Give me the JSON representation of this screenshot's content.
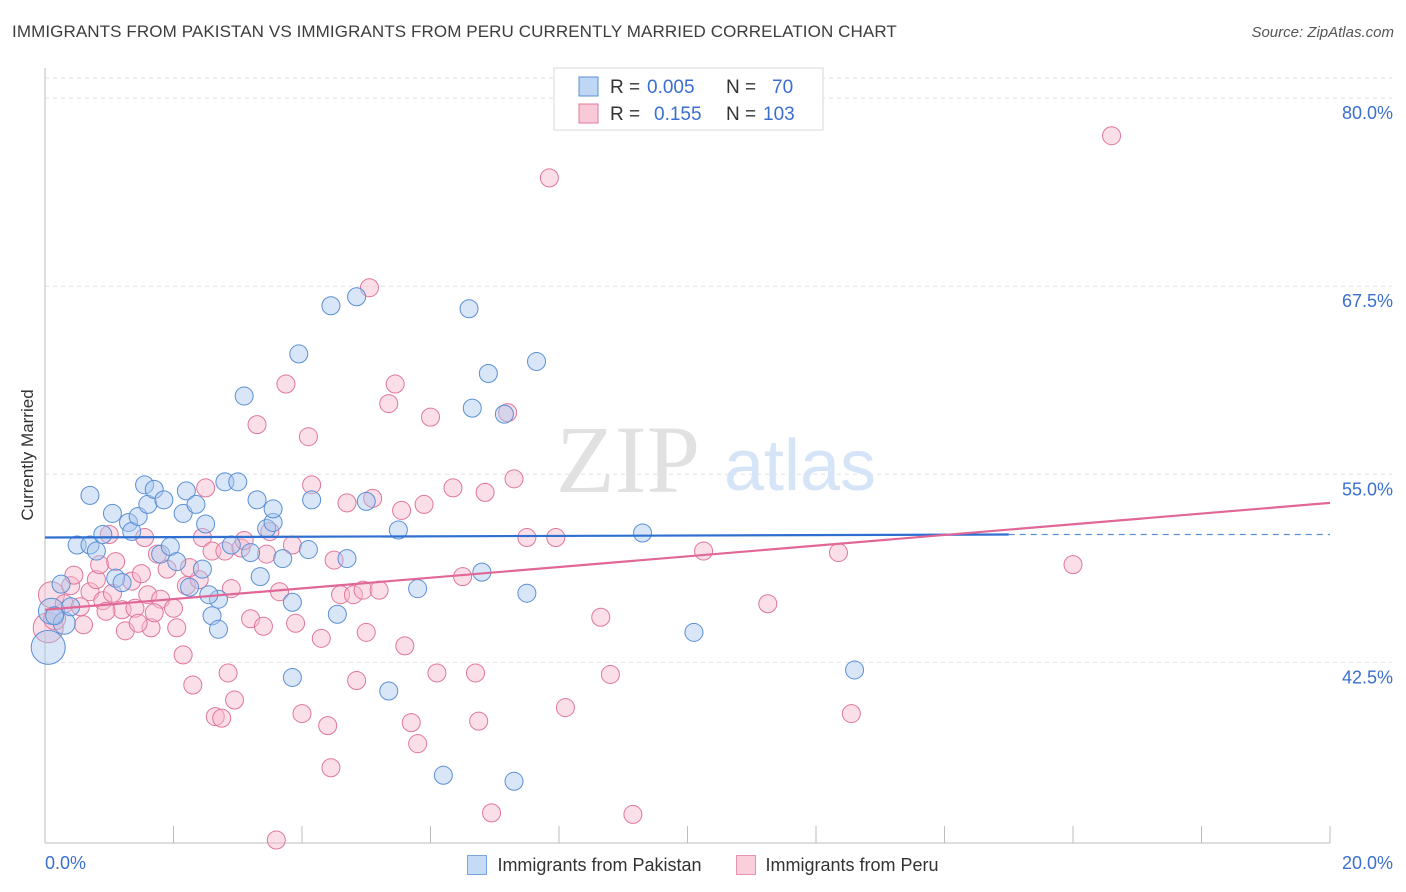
{
  "chart_data": {
    "type": "scatter",
    "title": "IMMIGRANTS FROM PAKISTAN VS IMMIGRANTS FROM PERU CURRENTLY MARRIED CORRELATION CHART",
    "source": "Source: ZipAtlas.com",
    "xlabel": "",
    "ylabel": "Currently Married",
    "xlim": [
      0,
      20
    ],
    "ylim": [
      30.5,
      82
    ],
    "x_tick_labels": [
      "0.0%",
      "20.0%"
    ],
    "y_ticks": [
      42.5,
      55.0,
      67.5,
      80.0
    ],
    "y_tick_labels": [
      "42.5%",
      "55.0%",
      "67.5%",
      "80.0%"
    ],
    "watermark": {
      "zip": "ZIP",
      "atlas": "atlas"
    },
    "legend_stats": [
      {
        "r_label": "R =",
        "r_value": "0.005",
        "n_label": "N =",
        "n_value": "70"
      },
      {
        "r_label": "R =",
        "r_value": "0.155",
        "n_label": "N =",
        "n_value": "103"
      }
    ],
    "colors": {
      "pakistan_fill": "#a9c8f0",
      "pakistan_stroke": "#5b8fd6",
      "pakistan_line": "#2f6fd0",
      "peru_fill": "#f6b8cb",
      "peru_stroke": "#e0779a",
      "peru_line": "#e06796",
      "tick_label": "#3a6fd0",
      "grid": "#e3e3e3"
    },
    "series": [
      {
        "name": "Immigrants from Pakistan",
        "trend": {
          "x_start": 0,
          "y_start": 50.8,
          "x_end": 15.0,
          "y_end": 51.0,
          "dashed_to_x": 20,
          "dashed_y": 51.0
        },
        "points": [
          [
            0.05,
            43.5
          ],
          [
            0.1,
            45.9
          ],
          [
            0.3,
            45.1
          ],
          [
            0.25,
            47.7
          ],
          [
            0.5,
            50.3
          ],
          [
            0.7,
            50.3
          ],
          [
            0.8,
            49.9
          ],
          [
            0.7,
            53.6
          ],
          [
            0.9,
            51.0
          ],
          [
            1.05,
            52.4
          ],
          [
            1.1,
            48.1
          ],
          [
            1.3,
            51.8
          ],
          [
            1.35,
            51.2
          ],
          [
            1.45,
            52.2
          ],
          [
            1.55,
            54.3
          ],
          [
            1.6,
            53.0
          ],
          [
            1.7,
            54.0
          ],
          [
            1.8,
            49.7
          ],
          [
            1.85,
            53.3
          ],
          [
            1.95,
            50.2
          ],
          [
            2.05,
            49.2
          ],
          [
            2.15,
            52.4
          ],
          [
            2.2,
            53.9
          ],
          [
            2.25,
            47.5
          ],
          [
            2.35,
            53.0
          ],
          [
            2.45,
            48.7
          ],
          [
            2.5,
            51.7
          ],
          [
            2.6,
            45.6
          ],
          [
            2.7,
            46.7
          ],
          [
            2.8,
            54.5
          ],
          [
            2.9,
            50.3
          ],
          [
            3.0,
            54.5
          ],
          [
            3.1,
            60.2
          ],
          [
            3.2,
            49.8
          ],
          [
            3.3,
            53.3
          ],
          [
            3.35,
            48.2
          ],
          [
            3.45,
            51.4
          ],
          [
            3.55,
            51.8
          ],
          [
            3.55,
            52.7
          ],
          [
            3.7,
            49.4
          ],
          [
            3.85,
            41.5
          ],
          [
            3.95,
            63.0
          ],
          [
            4.1,
            50.0
          ],
          [
            4.15,
            53.3
          ],
          [
            4.45,
            66.2
          ],
          [
            4.55,
            45.7
          ],
          [
            4.85,
            66.8
          ],
          [
            4.7,
            49.4
          ],
          [
            5.0,
            53.2
          ],
          [
            5.35,
            40.6
          ],
          [
            5.5,
            51.3
          ],
          [
            5.8,
            47.4
          ],
          [
            6.2,
            35.0
          ],
          [
            6.6,
            66.0
          ],
          [
            6.65,
            59.4
          ],
          [
            6.8,
            48.5
          ],
          [
            6.9,
            61.7
          ],
          [
            7.15,
            59.0
          ],
          [
            7.3,
            34.6
          ],
          [
            7.5,
            47.1
          ],
          [
            7.65,
            62.5
          ],
          [
            9.3,
            51.1
          ],
          [
            10.1,
            44.5
          ],
          [
            12.6,
            42.0
          ],
          [
            2.7,
            44.7
          ],
          [
            3.85,
            46.5
          ],
          [
            0.4,
            46.2
          ],
          [
            1.2,
            47.8
          ],
          [
            2.55,
            47.0
          ],
          [
            0.15,
            45.6
          ]
        ],
        "sizes": [
          34,
          26,
          22,
          18,
          18,
          18,
          18,
          18,
          18,
          18,
          18,
          18,
          18,
          18,
          18,
          18,
          18,
          18,
          18,
          18,
          18,
          18,
          18,
          18,
          18,
          18,
          18,
          18,
          18,
          18,
          18,
          18,
          18,
          18,
          18,
          18,
          18,
          18,
          18,
          18,
          18,
          18,
          18,
          18,
          18,
          18,
          18,
          18,
          18,
          18,
          18,
          18,
          18,
          18,
          18,
          18,
          18,
          18,
          18,
          18,
          18,
          18,
          18,
          18,
          18,
          18,
          18,
          18,
          18,
          18
        ]
      },
      {
        "name": "Immigrants from Peru",
        "trend": {
          "x_start": 0,
          "y_start": 46.0,
          "x_end": 20,
          "y_end": 53.1
        },
        "points": [
          [
            0.05,
            44.8
          ],
          [
            0.1,
            47.0
          ],
          [
            0.15,
            45.4
          ],
          [
            0.3,
            46.4
          ],
          [
            0.4,
            47.6
          ],
          [
            0.45,
            48.3
          ],
          [
            0.55,
            46.2
          ],
          [
            0.6,
            45.0
          ],
          [
            0.7,
            47.2
          ],
          [
            0.8,
            48.0
          ],
          [
            0.85,
            49.0
          ],
          [
            0.9,
            46.6
          ],
          [
            1.0,
            51.0
          ],
          [
            1.05,
            47.1
          ],
          [
            1.1,
            49.2
          ],
          [
            1.2,
            46.0
          ],
          [
            1.25,
            44.6
          ],
          [
            1.35,
            47.9
          ],
          [
            1.4,
            46.1
          ],
          [
            1.5,
            48.4
          ],
          [
            1.55,
            50.8
          ],
          [
            1.6,
            47.0
          ],
          [
            1.65,
            44.8
          ],
          [
            1.75,
            49.7
          ],
          [
            1.8,
            46.7
          ],
          [
            1.9,
            48.7
          ],
          [
            2.0,
            46.1
          ],
          [
            2.05,
            44.8
          ],
          [
            2.15,
            43.0
          ],
          [
            2.2,
            47.6
          ],
          [
            2.3,
            41.0
          ],
          [
            2.4,
            48.0
          ],
          [
            2.45,
            50.8
          ],
          [
            2.5,
            54.1
          ],
          [
            2.6,
            49.9
          ],
          [
            2.65,
            38.9
          ],
          [
            2.75,
            38.8
          ],
          [
            2.8,
            49.9
          ],
          [
            2.85,
            41.8
          ],
          [
            2.95,
            40.0
          ],
          [
            3.05,
            50.1
          ],
          [
            3.1,
            50.6
          ],
          [
            3.2,
            45.4
          ],
          [
            3.3,
            58.3
          ],
          [
            3.4,
            44.9
          ],
          [
            3.5,
            51.2
          ],
          [
            3.6,
            30.7
          ],
          [
            3.65,
            47.2
          ],
          [
            3.75,
            61.0
          ],
          [
            3.85,
            50.3
          ],
          [
            3.9,
            45.1
          ],
          [
            4.0,
            39.1
          ],
          [
            4.1,
            57.5
          ],
          [
            4.15,
            54.3
          ],
          [
            4.3,
            44.1
          ],
          [
            4.4,
            38.3
          ],
          [
            4.45,
            35.5
          ],
          [
            4.5,
            49.3
          ],
          [
            4.6,
            47.0
          ],
          [
            4.7,
            53.1
          ],
          [
            4.8,
            47.0
          ],
          [
            4.85,
            41.3
          ],
          [
            4.95,
            47.3
          ],
          [
            5.0,
            44.5
          ],
          [
            5.05,
            67.4
          ],
          [
            5.1,
            53.4
          ],
          [
            5.2,
            47.3
          ],
          [
            5.35,
            59.7
          ],
          [
            5.45,
            61.0
          ],
          [
            5.6,
            43.6
          ],
          [
            5.7,
            38.5
          ],
          [
            5.8,
            37.1
          ],
          [
            5.9,
            53.0
          ],
          [
            6.0,
            58.8
          ],
          [
            6.1,
            41.8
          ],
          [
            6.35,
            54.1
          ],
          [
            6.5,
            48.2
          ],
          [
            6.7,
            41.8
          ],
          [
            6.75,
            38.6
          ],
          [
            6.85,
            53.8
          ],
          [
            6.95,
            32.5
          ],
          [
            7.2,
            59.1
          ],
          [
            7.3,
            54.7
          ],
          [
            7.5,
            50.8
          ],
          [
            7.85,
            74.7
          ],
          [
            7.95,
            50.8
          ],
          [
            8.1,
            39.5
          ],
          [
            8.65,
            45.5
          ],
          [
            8.8,
            41.7
          ],
          [
            9.15,
            32.4
          ],
          [
            10.25,
            49.9
          ],
          [
            11.25,
            46.4
          ],
          [
            12.35,
            49.8
          ],
          [
            12.55,
            39.1
          ],
          [
            16.0,
            49.0
          ],
          [
            16.6,
            77.5
          ],
          [
            3.45,
            49.7
          ],
          [
            2.25,
            48.8
          ],
          [
            1.45,
            45.1
          ],
          [
            0.95,
            45.9
          ],
          [
            5.55,
            52.6
          ],
          [
            2.9,
            47.4
          ],
          [
            1.7,
            45.8
          ]
        ],
        "sizes": [
          30,
          26,
          22,
          18,
          18,
          18,
          18,
          18,
          18,
          18,
          18,
          18,
          18,
          18,
          18,
          18,
          18,
          18,
          18,
          18,
          18,
          18,
          18,
          18,
          18,
          18,
          18,
          18,
          18,
          18,
          18,
          18,
          18,
          18,
          18,
          18,
          18,
          18,
          18,
          18,
          18,
          18,
          18,
          18,
          18,
          18,
          18,
          18,
          18,
          18,
          18,
          18,
          18,
          18,
          18,
          18,
          18,
          18,
          18,
          18,
          18,
          18,
          18,
          18,
          18,
          18,
          18,
          18,
          18,
          18,
          18,
          18,
          18,
          18,
          18,
          18,
          18,
          18,
          18,
          18,
          18,
          18,
          18,
          18,
          18,
          18,
          18,
          18,
          18,
          18,
          18,
          18,
          18,
          18,
          18,
          18,
          18,
          18,
          18,
          18,
          18,
          18,
          18
        ]
      }
    ],
    "legend_bottom": [
      "Immigrants from Pakistan",
      "Immigrants from Peru"
    ]
  }
}
